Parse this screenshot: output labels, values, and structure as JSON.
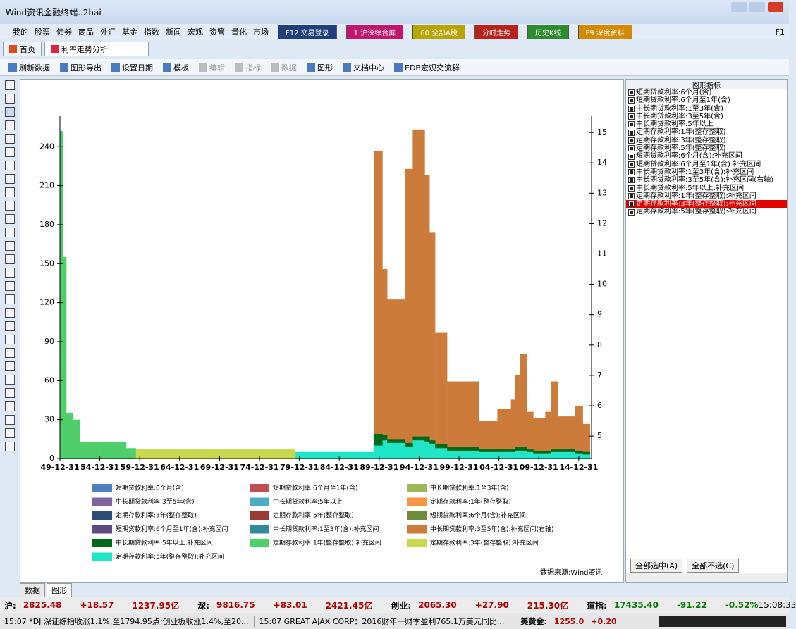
{
  "window": {
    "title": "Wind资讯金融终端..2hai"
  },
  "menu": [
    "我的",
    "股票",
    "债券",
    "商品",
    "外汇",
    "基金",
    "指数",
    "新闻",
    "宏观",
    "资管",
    "量化",
    "市场"
  ],
  "quick_buttons": [
    {
      "label": "F12 交易登录",
      "color": "#1f3f7a"
    },
    {
      "label": "1 沪深综合屏",
      "color": "#c0166e"
    },
    {
      "label": "60 全部A股",
      "color": "#b8a400"
    },
    {
      "label": "分时走势",
      "color": "#b8221a"
    },
    {
      "label": "历史K线",
      "color": "#2e8b2e"
    },
    {
      "label": "F9 深度资料",
      "color": "#d48a00"
    }
  ],
  "help": "F1",
  "tabs": [
    "首页",
    "利率走势分析"
  ],
  "toolbar": [
    "刷新数据",
    "图形导出",
    "设置日期",
    "模板",
    "编辑",
    "指标",
    "数据",
    "图形",
    "文档中心",
    "EDB宏观交流群"
  ],
  "chart_data": {
    "type": "step-area",
    "stacked": true,
    "x": [
      1950,
      1950.4,
      1950.8,
      1951.6,
      1952.5,
      1955,
      1958.3,
      1959.5,
      1979.5,
      1980,
      1989.3,
      1990.4,
      1991,
      1993.2,
      1994.2,
      1995.7,
      1996.3,
      1997,
      1998.5,
      2002.5,
      2004.8,
      2006.5,
      2007,
      2007.6,
      2008.5,
      2009.3,
      2010.8,
      2011.5,
      2012.4,
      2014.5,
      2015.5,
      2016.4
    ],
    "xlim": [
      1950,
      2016.6
    ],
    "xticks": [
      {
        "value": 1950,
        "label": "49-12-31"
      },
      {
        "value": 1955,
        "label": "54-12-31"
      },
      {
        "value": 1960,
        "label": "59-12-31"
      },
      {
        "value": 1965,
        "label": "64-12-31"
      },
      {
        "value": 1970,
        "label": "69-12-31"
      },
      {
        "value": 1975,
        "label": "74-12-31"
      },
      {
        "value": 1980,
        "label": "79-12-31"
      },
      {
        "value": 1985,
        "label": "84-12-31"
      },
      {
        "value": 1990,
        "label": "89-12-31"
      },
      {
        "value": 1995,
        "label": "94-12-31"
      },
      {
        "value": 2000,
        "label": "99-12-31"
      },
      {
        "value": 2005,
        "label": "04-12-31"
      },
      {
        "value": 2010,
        "label": "09-12-31"
      },
      {
        "value": 2015,
        "label": "14-12-31"
      }
    ],
    "ylim": [
      0,
      264
    ],
    "yticks": [
      0,
      30,
      60,
      90,
      120,
      150,
      180,
      210,
      240
    ],
    "y2lim": [
      4.26,
      15.56
    ],
    "y2ticks": [
      5,
      6,
      7,
      8,
      9,
      10,
      11,
      12,
      13,
      14,
      15
    ],
    "series": [
      {
        "name": "短期贷款利率:6个月(含)",
        "color": "#4f81bd",
        "values": [
          null,
          null,
          null,
          null,
          null,
          null,
          null,
          null,
          null,
          null,
          null,
          null,
          null,
          null,
          null,
          null,
          null,
          null,
          null,
          null,
          null,
          null,
          null,
          null,
          null,
          null,
          null,
          null,
          null,
          null,
          null,
          null
        ]
      },
      {
        "name": "短期贷款利率:6个月至1年(含)",
        "color": "#c0504d",
        "values": [
          null,
          null,
          null,
          null,
          null,
          null,
          null,
          null,
          null,
          null,
          null,
          null,
          null,
          null,
          null,
          null,
          null,
          null,
          null,
          null,
          null,
          null,
          null,
          null,
          null,
          null,
          null,
          null,
          null,
          null,
          null,
          null
        ]
      },
      {
        "name": "中长期贷款利率:1至3年(含)",
        "color": "#9bbb59",
        "values": [
          null,
          null,
          null,
          null,
          null,
          null,
          null,
          null,
          null,
          null,
          null,
          null,
          null,
          null,
          null,
          null,
          null,
          null,
          null,
          null,
          null,
          null,
          null,
          null,
          null,
          null,
          null,
          null,
          null,
          null,
          null,
          null
        ]
      },
      {
        "name": "中长期贷款利率:3至5年(含)",
        "color": "#8064a2",
        "values": [
          null,
          null,
          null,
          null,
          null,
          null,
          null,
          null,
          null,
          null,
          null,
          null,
          null,
          null,
          null,
          null,
          null,
          null,
          null,
          null,
          null,
          null,
          null,
          null,
          null,
          null,
          null,
          null,
          null,
          null,
          null,
          null
        ]
      },
      {
        "name": "中长期贷款利率:5年以上",
        "color": "#4bacc6",
        "values": [
          null,
          null,
          null,
          null,
          null,
          null,
          null,
          null,
          null,
          null,
          null,
          null,
          null,
          null,
          null,
          null,
          null,
          null,
          null,
          null,
          null,
          null,
          null,
          null,
          null,
          null,
          null,
          null,
          null,
          null,
          null,
          null
        ]
      },
      {
        "name": "定期存款利率:1年(整存整取)",
        "color": "#f79646",
        "values": [
          null,
          null,
          null,
          null,
          null,
          null,
          null,
          null,
          null,
          null,
          null,
          null,
          null,
          null,
          null,
          null,
          null,
          null,
          null,
          null,
          null,
          null,
          null,
          null,
          null,
          null,
          null,
          null,
          null,
          null,
          null,
          null
        ]
      },
      {
        "name": "定期存款利率:3年(整存整取)",
        "color": "#2c4d75",
        "values": [
          null,
          null,
          null,
          null,
          null,
          null,
          null,
          null,
          null,
          null,
          null,
          null,
          null,
          null,
          null,
          null,
          null,
          null,
          null,
          null,
          null,
          null,
          null,
          null,
          null,
          null,
          null,
          null,
          null,
          null,
          null,
          null
        ]
      },
      {
        "name": "定期存款利率:5年(整存整取)",
        "color": "#9b3b38",
        "values": [
          null,
          null,
          null,
          null,
          null,
          null,
          null,
          null,
          null,
          null,
          null,
          null,
          null,
          null,
          null,
          null,
          null,
          null,
          null,
          null,
          null,
          null,
          null,
          null,
          null,
          null,
          null,
          null,
          null,
          null,
          null,
          null
        ]
      },
      {
        "name": "短期贷款利率:6个月(含):补充区间",
        "color": "#6e8c3a",
        "values": [
          null,
          null,
          null,
          null,
          null,
          null,
          null,
          null,
          null,
          null,
          null,
          null,
          null,
          null,
          null,
          null,
          null,
          null,
          null,
          null,
          null,
          null,
          null,
          null,
          null,
          null,
          null,
          null,
          null,
          null,
          null,
          null
        ]
      },
      {
        "name": "短期贷款利率:6个月至1年(含):补充区间",
        "color": "#5e4a7e",
        "values": [
          null,
          null,
          null,
          null,
          null,
          null,
          null,
          null,
          null,
          null,
          null,
          null,
          null,
          null,
          null,
          null,
          null,
          null,
          null,
          null,
          null,
          null,
          null,
          null,
          null,
          null,
          null,
          null,
          null,
          null,
          null,
          null
        ]
      },
      {
        "name": "中长期贷款利率:1至3年(含):补充区间",
        "color": "#318a9e",
        "values": [
          null,
          null,
          null,
          null,
          null,
          null,
          null,
          null,
          null,
          null,
          null,
          null,
          null,
          null,
          null,
          null,
          null,
          null,
          null,
          null,
          null,
          null,
          null,
          null,
          null,
          null,
          null,
          null,
          null,
          null,
          null,
          null
        ]
      },
      {
        "name": "中长期贷款利率:3至5年(含):补充区间(右轴)",
        "color": "#cd7b3a",
        "axis": "y2",
        "values": [
          null,
          null,
          null,
          null,
          null,
          null,
          null,
          null,
          null,
          null,
          14.4,
          10.5,
          9.5,
          13.8,
          15.1,
          13.6,
          11.7,
          8.4,
          6.8,
          5.5,
          5.9,
          6.2,
          7.0,
          7.7,
          5.8,
          5.6,
          5.8,
          6.8,
          5.65,
          6.0,
          5.4,
          null
        ]
      },
      {
        "name": "中长期贷款利率:5年以上:补充区间",
        "color": "#006a1a",
        "values": [
          null,
          null,
          null,
          null,
          null,
          null,
          null,
          null,
          null,
          null,
          9,
          4,
          3,
          3,
          3,
          4,
          3,
          3,
          3,
          2,
          2,
          2,
          3,
          3,
          2,
          2,
          2,
          2,
          2,
          2,
          2,
          null
        ]
      },
      {
        "name": "定期存款利率:1年(整存整取):补充区间",
        "color": "#4fcf6a",
        "values": [
          252,
          155,
          35,
          30,
          13,
          13,
          8,
          null,
          null,
          null,
          null,
          null,
          null,
          null,
          null,
          null,
          null,
          null,
          null,
          null,
          null,
          null,
          null,
          null,
          null,
          null,
          null,
          null,
          null,
          null,
          null,
          null
        ]
      },
      {
        "name": "定期存款利率:3年(整存整取):补充区间",
        "color": "#c9d94e",
        "values": [
          null,
          null,
          null,
          null,
          null,
          null,
          null,
          7,
          null,
          null,
          null,
          null,
          null,
          null,
          null,
          null,
          null,
          null,
          null,
          null,
          null,
          null,
          null,
          null,
          null,
          null,
          null,
          null,
          null,
          null,
          null,
          null
        ]
      },
      {
        "name": "定期存款利率:5年(整存整取):补充区间",
        "color": "#1fe6c6",
        "values": [
          null,
          null,
          null,
          null,
          null,
          null,
          null,
          null,
          5,
          5,
          10,
          14,
          12,
          9,
          14,
          13,
          11,
          8,
          6,
          5,
          5,
          5,
          6,
          6,
          5,
          4,
          4,
          5,
          5,
          4,
          3,
          null
        ]
      }
    ]
  },
  "indicator_panel": {
    "title": "图形指标",
    "selected": 14,
    "buttons": [
      "全部选中(A)",
      "全部不选(C)"
    ]
  },
  "source": "数据来源:Wind资讯",
  "sheet_tabs": [
    "数据",
    "图形"
  ],
  "status": {
    "quotes": [
      {
        "label": "沪:",
        "values": [
          "2825.48",
          "+18.57",
          "1237.95亿"
        ],
        "color": "#b00000"
      },
      {
        "label": "深:",
        "values": [
          "9816.75",
          "+83.01",
          "2421.45亿"
        ],
        "color": "#b00000"
      },
      {
        "label": "创业:",
        "values": [
          "2065.30",
          "+27.90",
          "215.30亿"
        ],
        "color": "#b00000"
      },
      {
        "label": "道指:",
        "values": [
          "17435.40",
          "-91.22",
          "-0.52%"
        ],
        "color": "#007a00"
      }
    ],
    "time": "15:08:33",
    "news": [
      "15:07 *DJ 深证综指收涨1.1%,至1794.95点;创业板收涨1.4%,至20...",
      "15:07 GREAT AJAX CORP：2016财年一财季盈利765.1万美元同比..."
    ],
    "gold": {
      "label": "美黄金:",
      "values": [
        "1255.0",
        "+0.20"
      ]
    }
  }
}
